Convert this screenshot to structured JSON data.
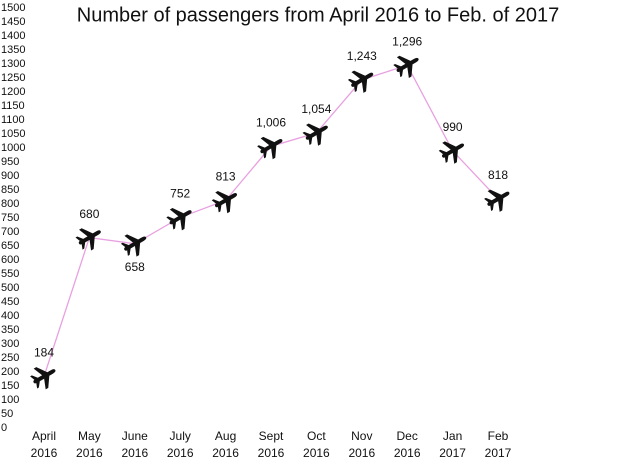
{
  "chart_data": {
    "type": "line",
    "title": "Number of passengers from April 2016 to Feb. of 2017",
    "categories": [
      "April 2016",
      "May 2016",
      "June 2016",
      "July 2016",
      "Aug 2016",
      "Sept 2016",
      "Oct 2016",
      "Nov 2016",
      "Dec 2016",
      "Jan 2017",
      "Feb 2017"
    ],
    "values": [
      184,
      680,
      658,
      752,
      813,
      1006,
      1054,
      1243,
      1296,
      990,
      818
    ],
    "value_labels": [
      "184",
      "680",
      "658",
      "752",
      "813",
      "1,006",
      "1,054",
      "1,243",
      "1,296",
      "990",
      "818"
    ],
    "color": "#e8a0e0",
    "ylim": [
      0,
      1500
    ],
    "yticks": [
      0,
      50,
      100,
      150,
      200,
      250,
      300,
      350,
      400,
      450,
      500,
      550,
      600,
      650,
      700,
      750,
      800,
      850,
      900,
      950,
      1000,
      1050,
      1100,
      1150,
      1200,
      1250,
      1300,
      1350,
      1400,
      1450,
      1500
    ]
  }
}
